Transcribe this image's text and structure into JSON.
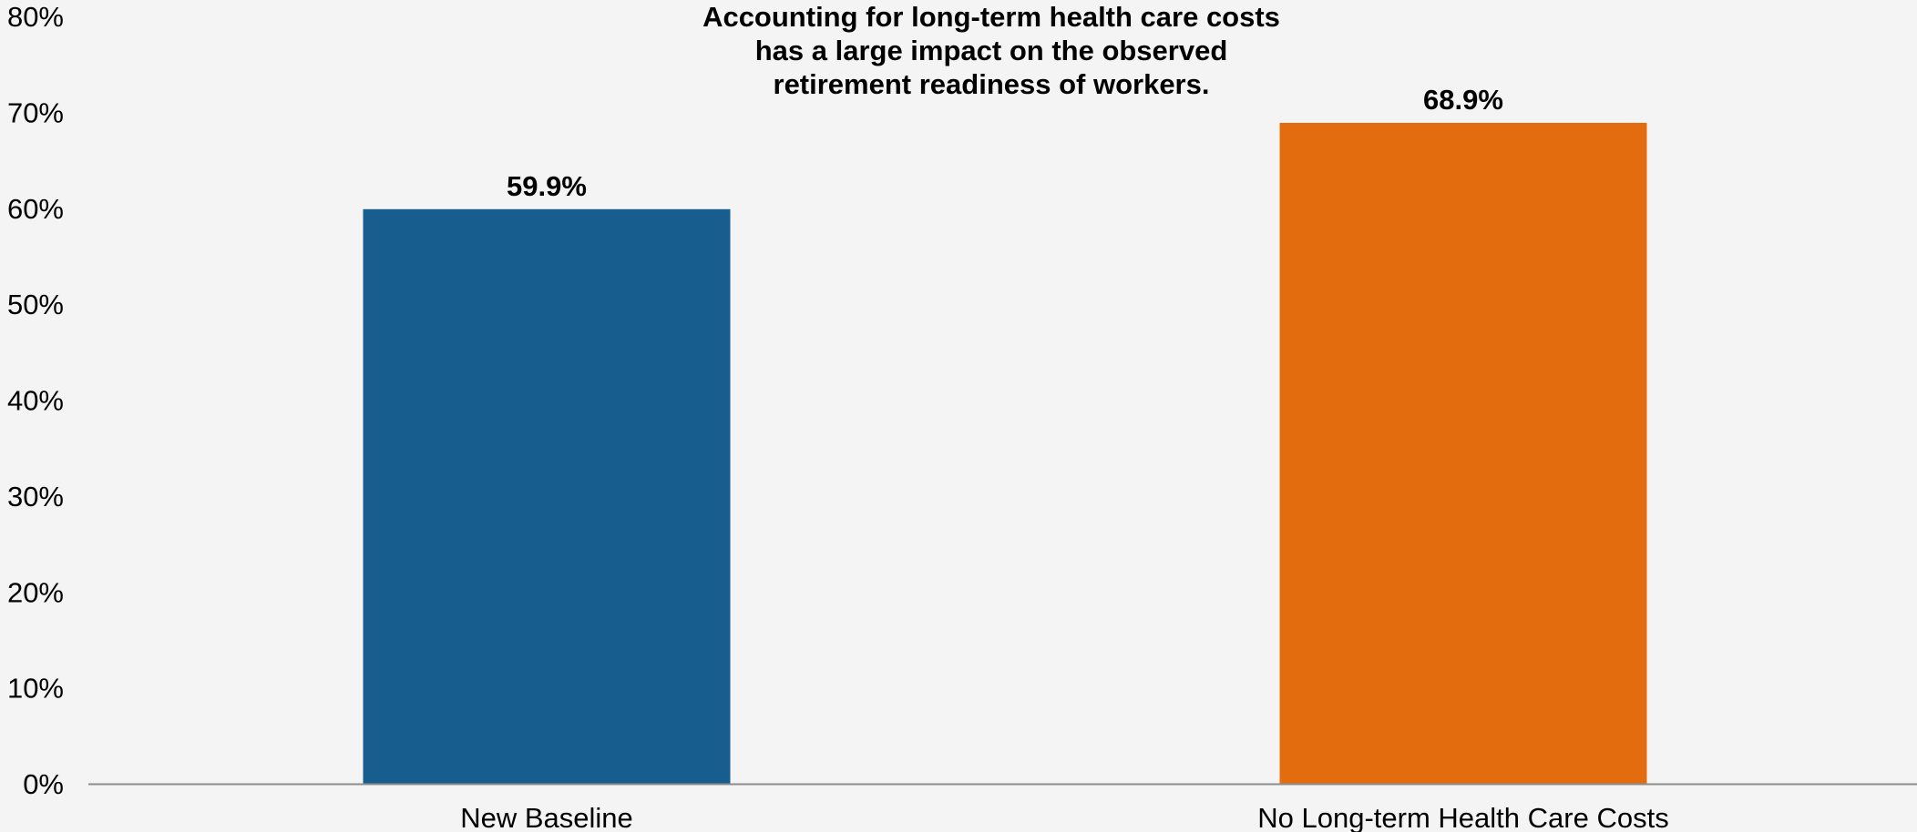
{
  "chart_data": {
    "type": "bar",
    "title_lines": [
      "Accounting for long-term health care costs",
      "has a large impact on the observed",
      "retirement readiness of workers."
    ],
    "categories": [
      "New Baseline",
      "No Long-term Health Care Costs"
    ],
    "values": [
      59.9,
      68.9
    ],
    "data_labels": [
      "59.9%",
      "68.9%"
    ],
    "bar_colors": [
      "#175e8f",
      "#e36c0e"
    ],
    "ylim": [
      0,
      80
    ],
    "y_ticks": [
      0,
      10,
      20,
      30,
      40,
      50,
      60,
      70,
      80
    ],
    "y_tick_labels": [
      "0%",
      "10%",
      "20%",
      "30%",
      "40%",
      "50%",
      "60%",
      "70%",
      "80%"
    ],
    "grid": false,
    "legend": "none"
  }
}
